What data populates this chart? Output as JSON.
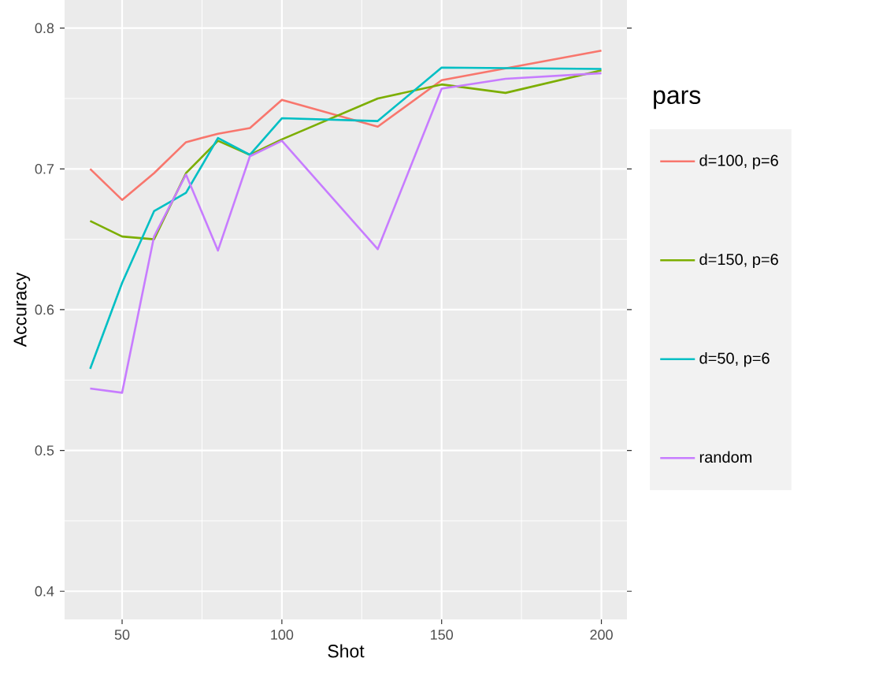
{
  "chart_data": {
    "type": "line",
    "xlabel": "Shot",
    "ylabel": "Accuracy",
    "legend_title": "pars",
    "xlim": [
      32,
      208
    ],
    "ylim": [
      0.38,
      0.82
    ],
    "xticks": [
      50,
      100,
      150,
      200
    ],
    "yticks": [
      0.4,
      0.5,
      0.6,
      0.7,
      0.8
    ],
    "grid": true,
    "legend": "right",
    "line_style": "solid",
    "marker": "none",
    "series": [
      {
        "name": "d=100, p=6",
        "color": "#f8766d",
        "x": [
          40,
          50,
          60,
          70,
          80,
          90,
          100,
          130,
          150,
          200
        ],
        "values": [
          0.7,
          0.678,
          0.697,
          0.719,
          0.725,
          0.729,
          0.749,
          0.73,
          0.763,
          0.784
        ]
      },
      {
        "name": "d=150, p=6",
        "color": "#7cae00",
        "x": [
          40,
          50,
          60,
          70,
          80,
          90,
          100,
          130,
          150,
          170,
          200
        ],
        "values": [
          0.663,
          0.652,
          0.65,
          0.697,
          0.72,
          0.71,
          0.721,
          0.75,
          0.76,
          0.754,
          0.77
        ]
      },
      {
        "name": "d=50, p=6",
        "color": "#00bfc4",
        "x": [
          40,
          50,
          60,
          70,
          80,
          90,
          100,
          130,
          150,
          200
        ],
        "values": [
          0.558,
          0.619,
          0.67,
          0.683,
          0.722,
          0.71,
          0.736,
          0.734,
          0.772,
          0.771
        ]
      },
      {
        "name": "random",
        "color": "#c77cff",
        "x": [
          40,
          50,
          60,
          70,
          80,
          90,
          100,
          130,
          150,
          170,
          200
        ],
        "values": [
          0.544,
          0.541,
          0.652,
          0.696,
          0.642,
          0.709,
          0.72,
          0.643,
          0.757,
          0.764,
          0.768
        ]
      }
    ]
  }
}
